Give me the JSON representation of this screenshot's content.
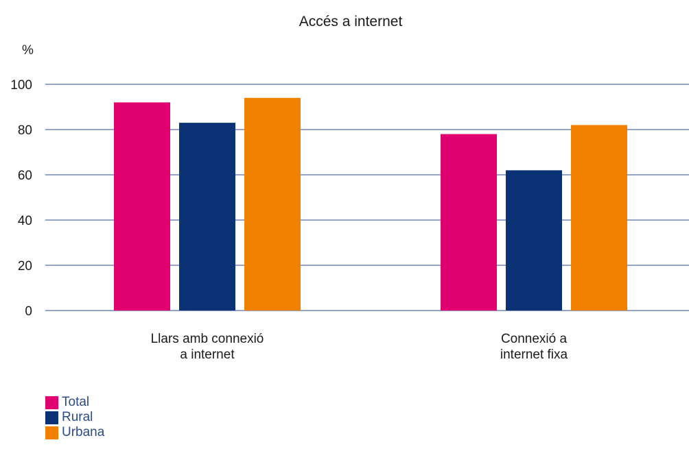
{
  "chart_data": {
    "type": "bar",
    "title": "Accés a internet",
    "ylabel": "%",
    "ylim": [
      0,
      100
    ],
    "yticks": [
      0,
      20,
      40,
      60,
      80,
      100
    ],
    "grid": true,
    "categories": [
      [
        "Llars amb connexió",
        "a internet"
      ],
      [
        "Connexió a",
        "internet fixa"
      ]
    ],
    "series": [
      {
        "name": "Total",
        "color": "#e0006f",
        "values": [
          92,
          78
        ]
      },
      {
        "name": "Rural",
        "color": "#0c3276",
        "values": [
          83,
          62
        ]
      },
      {
        "name": "Urbana",
        "color": "#f08000",
        "values": [
          94,
          82
        ]
      }
    ],
    "legend_position": "bottom-left",
    "grid_color": "#2b4a8b"
  }
}
